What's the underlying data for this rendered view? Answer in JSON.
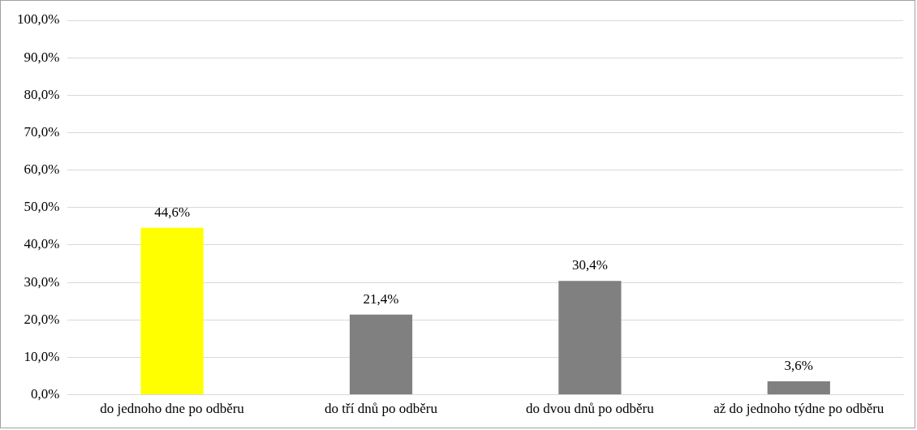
{
  "chart_data": {
    "type": "bar",
    "categories": [
      "do jednoho dne po odběru",
      "do tří dnů po odběru",
      "do dvou dnů po odběru",
      "až do jednoho týdne po odběru"
    ],
    "values": [
      44.6,
      21.4,
      30.4,
      3.6
    ],
    "colors": [
      "#ffff00",
      "#808080",
      "#808080",
      "#808080"
    ],
    "value_labels": [
      "44,6%",
      "21,4%",
      "30,4%",
      "3,6%"
    ],
    "ylim": [
      0,
      100
    ],
    "yticks": [
      {
        "value": 0,
        "label": "0,0%"
      },
      {
        "value": 10,
        "label": "10,0%"
      },
      {
        "value": 20,
        "label": "20,0%"
      },
      {
        "value": 30,
        "label": "30,0%"
      },
      {
        "value": 40,
        "label": "40,0%"
      },
      {
        "value": 50,
        "label": "50,0%"
      },
      {
        "value": 60,
        "label": "60,0%"
      },
      {
        "value": 70,
        "label": "70,0%"
      },
      {
        "value": 80,
        "label": "80,0%"
      },
      {
        "value": 90,
        "label": "90,0%"
      },
      {
        "value": 100,
        "label": "100,0%"
      }
    ],
    "grid": "y",
    "legend": false
  }
}
